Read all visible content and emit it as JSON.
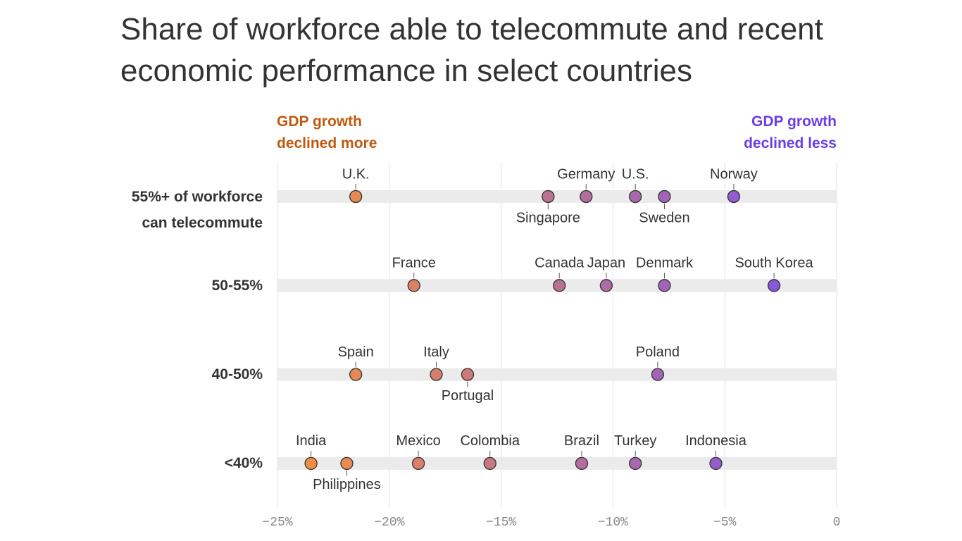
{
  "chart_data": {
    "type": "dot",
    "title": "Share of workforce able to telecommute and recent economic performance in select countries",
    "annotation_left": "GDP growth declined more",
    "annotation_left_color": "#c0590f",
    "annotation_right": "GDP growth declined less",
    "annotation_right_color": "#6a3de8",
    "colors": [
      "#f7923a",
      "#7b4ff0"
    ],
    "xlim": [
      -25,
      0
    ],
    "xticks": [
      {
        "value": -25,
        "label": "−25%"
      },
      {
        "value": -20,
        "label": "−20%"
      },
      {
        "value": -15,
        "label": "−15%"
      },
      {
        "value": -10,
        "label": "−10%"
      },
      {
        "value": -5,
        "label": "−5%"
      },
      0
    ],
    "grid": true,
    "series": [
      {
        "name": "55%+ of workforce can telecommute",
        "labels": [
          "U.K.",
          "Singapore",
          "Germany",
          "U.S.",
          "Sweden",
          "Norway"
        ],
        "values": [
          -21.5,
          -12.9,
          -11.2,
          -9.0,
          -7.7,
          -4.6
        ]
      },
      {
        "name": "50-55%",
        "labels": [
          "France",
          "Canada",
          "Japan",
          "Denmark",
          "South Korea"
        ],
        "values": [
          -18.9,
          -12.4,
          -10.3,
          -7.7,
          -2.8
        ]
      },
      {
        "name": "40-50%",
        "labels": [
          "Spain",
          "Italy",
          "Portugal",
          "Poland"
        ],
        "values": [
          -21.5,
          -17.9,
          -16.5,
          -8.0
        ]
      },
      {
        "name": "<40%",
        "labels": [
          "India",
          "Philippines",
          "Mexico",
          "Colombia",
          "Brazil",
          "Turkey",
          "Indonesia"
        ],
        "values": [
          -23.5,
          -21.9,
          -18.7,
          -15.5,
          -11.4,
          -9.0,
          -5.4
        ]
      }
    ]
  }
}
